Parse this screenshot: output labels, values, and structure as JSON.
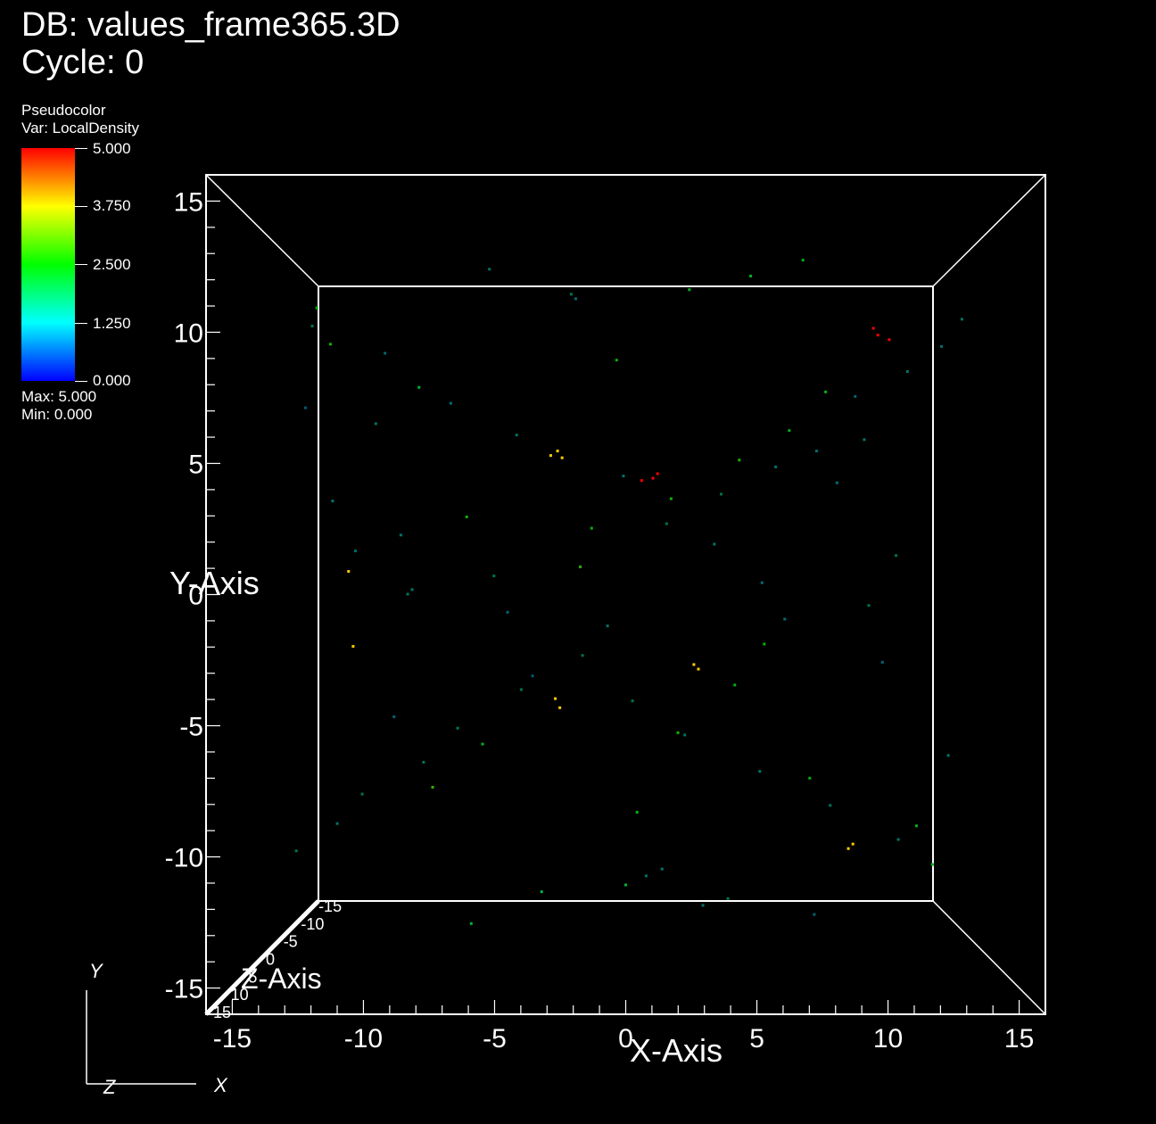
{
  "header": {
    "db_title": "DB: values_frame365.3D",
    "cycle": "Cycle: 0"
  },
  "legend": {
    "plot_type": "Pseudocolor",
    "variable": "Var: LocalDensity",
    "ticks": [
      "5.000",
      "3.750",
      "2.500",
      "1.250",
      "0.000"
    ],
    "max": "Max:  5.000",
    "min": "Min:  0.000",
    "colors": [
      "#ff0000",
      "#ffff00",
      "#00ff00",
      "#00ffff",
      "#0000ff"
    ]
  },
  "triad": {
    "y_label": "Y",
    "z_label": "Z",
    "x_label": "X"
  },
  "chart_data": {
    "type": "scatter",
    "title": "",
    "xlabel": "X-Axis",
    "ylabel": "Y-Axis",
    "zlabel": "Z-Axis",
    "xlim": [
      -16,
      16
    ],
    "ylim": [
      -16,
      16
    ],
    "zlim": [
      -16,
      16
    ],
    "x_ticks": [
      -15,
      -10,
      -5,
      0,
      5,
      10,
      15
    ],
    "y_ticks": [
      15,
      10,
      5,
      0,
      -5,
      -10,
      -15
    ],
    "z_ticks": [
      15,
      10,
      5,
      0,
      -5,
      -10,
      -15
    ],
    "x_tick_labels": [
      "-15",
      "-10",
      "-5",
      "0",
      "5",
      "10",
      "15"
    ],
    "y_tick_labels": [
      "15",
      "10",
      "5",
      "0",
      "-5",
      "-10",
      "-15"
    ],
    "z_tick_labels": [
      "15",
      "10",
      "5",
      "0",
      "-5",
      "-10",
      "-15"
    ],
    "colorbar_range": [
      0,
      5
    ],
    "background": "#000000",
    "box_color": "#ffffff",
    "series": [
      {
        "x": [
          1.2,
          1.4,
          0.7,
          -3.0,
          -3.3,
          -2.8,
          3.0,
          3.2,
          -3.1,
          -2.9,
          9.8,
          10.0,
          10.9,
          11.1,
          11.6,
          -12.2,
          -12.0,
          2.0,
          2.3,
          -2.0,
          -1.5,
          4.8,
          5.0,
          6.1,
          -6.3,
          -7.0,
          7.2,
          8.1,
          -8.5,
          8.8,
          -9.1,
          0.5,
          -0.4,
          12.8,
          -13.0,
          13.5,
          -13.6,
          6.0,
          -5.2,
          3.9,
          -4.1,
          9.3,
          -10.2,
          10.5,
          -11.0,
          14.2,
          -14.1,
          0.0,
          2.8,
          -3.7,
          5.5,
          -6.8,
          7.8,
          -9.6,
          11.9,
          -0.8,
          1.8,
          -1.9,
          4.2,
          -4.6,
          6.6,
          -7.4,
          8.4,
          -8.9,
          10.1,
          -11.6,
          12.4,
          -12.7,
          13.9,
          -14.5,
          14.8,
          0.9,
          -2.4,
          3.4,
          -5.8,
          7.0,
          -9.9,
          11.3,
          -12.9,
          0.3,
          -0.1,
          2.6,
          -4.8,
          5.9,
          -7.7,
          9.0,
          -10.6,
          12.0,
          -13.8,
          1.6,
          -2.2,
          4.5,
          -6.0,
          8.3,
          -9.4,
          10.7,
          -11.9
        ],
        "y": [
          5.1,
          5.3,
          5.0,
          6.3,
          6.1,
          6.0,
          -3.1,
          -3.3,
          -4.6,
          -5.0,
          -11.2,
          -11.0,
          11.7,
          11.4,
          11.2,
          1.0,
          -2.3,
          4.2,
          -6.1,
          1.2,
          2.9,
          -4.0,
          5.9,
          -2.2,
          -6.6,
          3.4,
          7.2,
          -8.1,
          -8.5,
          8.9,
          9.1,
          -9.6,
          10.3,
          -10.2,
          11.0,
          -11.9,
          12.6,
          0.5,
          -0.8,
          2.2,
          -3.6,
          4.9,
          -5.4,
          6.8,
          7.5,
          -7.1,
          8.2,
          -12.8,
          13.4,
          -13.1,
          14.0,
          -14.5,
          14.7,
          0.0,
          1.7,
          -1.4,
          3.1,
          -2.7,
          4.4,
          -4.2,
          5.6,
          -5.9,
          6.3,
          -7.4,
          8.7,
          -8.8,
          9.8,
          -10.1,
          10.9,
          -11.3,
          12.1,
          -12.4,
          13.2,
          -13.7,
          0.8,
          -1.1,
          2.6,
          -3.0,
          4.1,
          -4.7,
          5.2,
          -6.2,
          7.0,
          -7.8,
          8.4,
          -9.3,
          10.6,
          -10.8,
          11.8,
          -12.1,
          13.0,
          -13.4,
          14.3,
          -14.1,
          0.2,
          -0.5,
          1.9
        ],
        "z": [
          0,
          0,
          0,
          0,
          0,
          0,
          0,
          0,
          0,
          0,
          0,
          0,
          0,
          0,
          0,
          0,
          0,
          0,
          0,
          0,
          0,
          0,
          0,
          0,
          0,
          0,
          0,
          0,
          0,
          0,
          0,
          0,
          0,
          0,
          0,
          0,
          0,
          0,
          0,
          0,
          0,
          0,
          0,
          0,
          0,
          0,
          0,
          0,
          0,
          0,
          0,
          0,
          0,
          0,
          0,
          0,
          0,
          0,
          0,
          0,
          0,
          0,
          0,
          0,
          0,
          0,
          0,
          0,
          0,
          0,
          0,
          0,
          0,
          0,
          0,
          0,
          0,
          0,
          0,
          0,
          0,
          0,
          0,
          0,
          0,
          0,
          0,
          0,
          0,
          0,
          0,
          0,
          0,
          0,
          0,
          0,
          0
        ],
        "value": [
          5.0,
          5.0,
          5.0,
          4.0,
          4.0,
          4.0,
          4.0,
          4.0,
          4.0,
          4.0,
          4.0,
          4.0,
          5.0,
          5.0,
          5.0,
          4.0,
          4.0,
          2.6,
          2.6,
          2.8,
          2.5,
          2.4,
          2.7,
          2.5,
          2.3,
          2.6,
          2.4,
          2.5,
          2.9,
          2.3,
          2.2,
          2.4,
          2.5,
          2.3,
          2.6,
          2.4,
          2.5,
          1.2,
          1.1,
          1.3,
          1.0,
          1.2,
          1.1,
          1.3,
          1.4,
          1.2,
          1.0,
          2.1,
          2.2,
          2.0,
          2.3,
          2.1,
          2.4,
          1.5,
          1.6,
          1.4,
          1.7,
          1.5,
          1.8,
          1.6,
          1.3,
          1.4,
          1.2,
          1.5,
          1.1,
          1.6,
          1.3,
          1.4,
          1.2,
          1.7,
          1.5,
          1.4,
          1.6,
          1.3,
          1.5,
          1.2,
          1.4,
          1.1,
          1.3,
          1.6,
          1.2,
          1.5,
          1.4,
          1.3,
          1.2,
          1.5,
          1.1,
          1.4,
          1.6,
          1.3,
          1.2,
          1.5,
          1.4,
          1.1,
          1.3,
          1.6,
          1.2
        ]
      }
    ]
  }
}
